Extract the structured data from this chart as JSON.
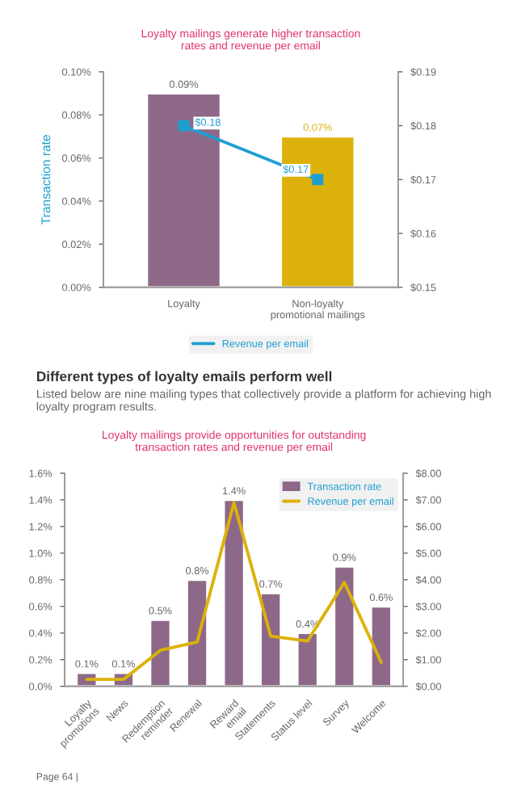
{
  "chart_data": [
    {
      "type": "bar",
      "title": "Loyalty mailings generate higher transaction\nrates and revenue per email",
      "ylabel": "Transaction rate",
      "categories": [
        "Loyalty",
        "Non-loyalty\npromotional mailings"
      ],
      "series": [
        {
          "colors": [
            "#8e6888",
            "#dcb20a"
          ],
          "values": [
            0.09,
            0.07
          ],
          "value_labels": [
            "0.09%",
            "0.07%"
          ]
        },
        {
          "type": "line",
          "name": "Revenue per email",
          "color": "#1e9fd2",
          "axis": "y2",
          "marker": "square",
          "values": [
            0.18,
            0.17
          ],
          "value_labels": [
            "$0.18",
            "$0.17"
          ]
        }
      ],
      "ylim": [
        0,
        0.1
      ],
      "yticks": [
        {
          "value": 0,
          "label": "0.00%"
        },
        {
          "value": 0.02,
          "label": "0.02%"
        },
        {
          "value": 0.04,
          "label": "0.04%"
        },
        {
          "value": 0.06,
          "label": "0.06%"
        },
        {
          "value": 0.08,
          "label": "0.08%"
        },
        {
          "value": 0.1,
          "label": "0.10%"
        }
      ],
      "y2lim": [
        0.15,
        0.19
      ],
      "y2ticks": [
        {
          "value": 0.15,
          "label": "$0.15"
        },
        {
          "value": 0.16,
          "label": "$0.16"
        },
        {
          "value": 0.17,
          "label": "$0.17"
        },
        {
          "value": 0.18,
          "label": "$0.18"
        },
        {
          "value": 0.19,
          "label": "$0.19"
        }
      ],
      "legend": "bottom",
      "grid": false
    },
    {
      "type": "bar",
      "title": "Loyalty mailings provide opportunities for outstanding\ntransaction rates and revenue per email",
      "categories": [
        "Loyalty\npromotions",
        "News",
        "Redemption\nreminder",
        "Renewal",
        "Reward\nemail",
        "Statements",
        "Status level",
        "Survey",
        "Welcome"
      ],
      "series": [
        {
          "name": "Transaction rate",
          "color": "#8e6888",
          "values": [
            0.1,
            0.1,
            0.5,
            0.8,
            1.4,
            0.7,
            0.4,
            0.9,
            0.6
          ],
          "value_labels": [
            "0.1%",
            "0.1%",
            "0.5%",
            "0.8%",
            "1.4%",
            "0.7%",
            "0.4%",
            "0.9%",
            "0.6%"
          ]
        },
        {
          "type": "line",
          "name": "Revenue per email",
          "color": "#dcb20a",
          "axis": "y2",
          "values": [
            0.26,
            0.26,
            1.35,
            1.66,
            6.9,
            1.88,
            1.7,
            3.9,
            0.9
          ]
        }
      ],
      "ylim": [
        0,
        1.6
      ],
      "yticks": [
        {
          "value": 0,
          "label": "0.0%"
        },
        {
          "value": 0.2,
          "label": "0.2%"
        },
        {
          "value": 0.4,
          "label": "0.4%"
        },
        {
          "value": 0.6,
          "label": "0.6%"
        },
        {
          "value": 0.8,
          "label": "0.8%"
        },
        {
          "value": 1.0,
          "label": "1.0%"
        },
        {
          "value": 1.2,
          "label": "1.2%"
        },
        {
          "value": 1.4,
          "label": "1.4%"
        },
        {
          "value": 1.6,
          "label": "1.6%"
        }
      ],
      "y2lim": [
        0,
        8
      ],
      "y2ticks": [
        {
          "value": 0,
          "label": "$0.00"
        },
        {
          "value": 1,
          "label": "$1.00"
        },
        {
          "value": 2,
          "label": "$2.00"
        },
        {
          "value": 3,
          "label": "$3.00"
        },
        {
          "value": 4,
          "label": "$4.00"
        },
        {
          "value": 5,
          "label": "$5.00"
        },
        {
          "value": 6,
          "label": "$6.00"
        },
        {
          "value": 7,
          "label": "$7.00"
        },
        {
          "value": 8,
          "label": "$8.00"
        }
      ],
      "legend": "top right",
      "grid": false,
      "annotations": [
        "Different types of loyalty emails perform well",
        "Listed below are nine mailing types that collectively provide a platform for achieving high loyalty program results.",
        "Page 64 |"
      ]
    }
  ]
}
